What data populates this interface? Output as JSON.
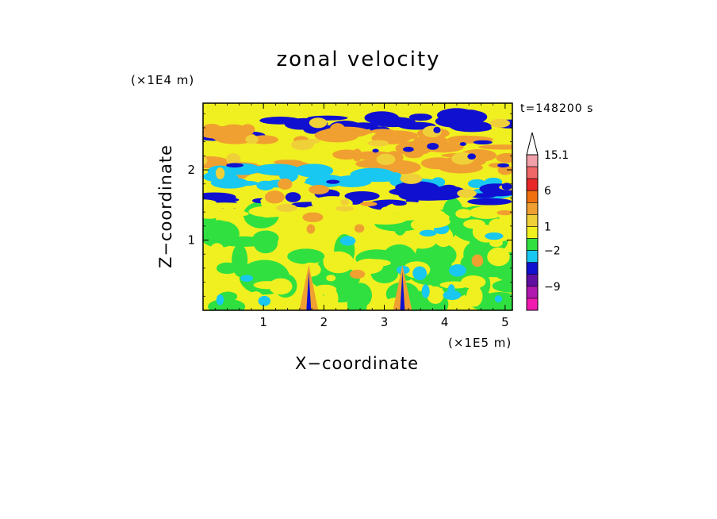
{
  "chart_data": {
    "type": "heatmap",
    "title": "zonal velocity",
    "xlabel": "X−coordinate",
    "ylabel": "Z−coordinate",
    "x_unit": "(×1E5 m)",
    "z_unit": "(×1E4 m)",
    "time_label": "t=148200 s",
    "xlim": [
      0,
      5.12
    ],
    "ylim": [
      0,
      2.95
    ],
    "x_ticks": [
      1,
      2,
      3,
      4,
      5
    ],
    "y_ticks": [
      1,
      2
    ],
    "colorbar": {
      "labels": [
        "15.1",
        "6",
        "1",
        "−2",
        "−9"
      ],
      "label_values": [
        15.1,
        6,
        1,
        -2,
        -9
      ],
      "levels": [
        {
          "color": "#f0a0a8"
        },
        {
          "color": "#f06868"
        },
        {
          "color": "#e82828"
        },
        {
          "color": "#f07010"
        },
        {
          "color": "#f0a030"
        },
        {
          "color": "#f0d038"
        },
        {
          "color": "#f0f020"
        },
        {
          "color": "#30e040"
        },
        {
          "color": "#18c8f0"
        },
        {
          "color": "#1010d0"
        },
        {
          "color": "#6010a0"
        },
        {
          "color": "#b018b0"
        },
        {
          "color": "#f01ab0"
        }
      ]
    },
    "bands": [
      {
        "z": 2.65,
        "kind": "blue"
      },
      {
        "z": 2.45,
        "kind": "orange"
      },
      {
        "z": 2.1,
        "kind": "orange"
      },
      {
        "z": 1.85,
        "kind": "cyan"
      },
      {
        "z": 1.6,
        "kind": "blue"
      },
      {
        "z": 1.4,
        "kind": "yellow"
      },
      {
        "z": 0.6,
        "kind": "green"
      }
    ],
    "mountains_x": [
      1.75,
      3.3
    ]
  }
}
